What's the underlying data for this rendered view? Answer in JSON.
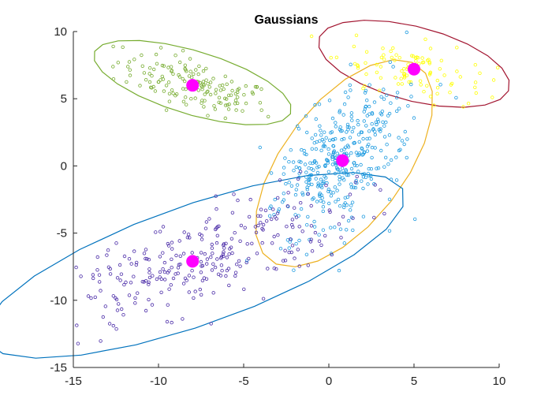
{
  "chart_data": {
    "type": "scatter",
    "title": "Gaussians",
    "xlabel": "",
    "ylabel": "",
    "xlim": [
      -15,
      10
    ],
    "ylim": [
      -15,
      10
    ],
    "xticks": [
      "-15",
      "-10",
      "-5",
      "0",
      "5",
      "10"
    ],
    "yticks": [
      "-15",
      "-10",
      "-5",
      "0",
      "5",
      "10"
    ],
    "grid": false,
    "legend": "none",
    "clusters": [
      {
        "id": "green",
        "color": "#77AC30",
        "mean": [
          -8,
          6
        ],
        "n": 150,
        "ellipse": {
          "center": [
            -8,
            6.2
          ],
          "semi_axes": [
            6.2,
            2.3
          ],
          "angle_deg": -22
        }
      },
      {
        "id": "yellow",
        "color": "#FFFF00",
        "ellipse_color": "#A2142F",
        "mean": [
          5,
          7.2
        ],
        "n": 100,
        "ellipse": {
          "center": [
            5,
            7.6
          ],
          "semi_axes": [
            5.9,
            2.7
          ],
          "angle_deg": -20
        }
      },
      {
        "id": "lightblue",
        "color": "#0072BD",
        "marker_color": "#1E9BE0",
        "ellipse_color": "#EDB120",
        "mean": [
          0.8,
          0.4
        ],
        "n": 400,
        "ellipse": {
          "center": [
            0.9,
            0.2
          ],
          "semi_axes": [
            8.5,
            3.8
          ],
          "angle_deg": 62
        }
      },
      {
        "id": "purple",
        "color": "#4B2CA8",
        "ellipse_color": "#0072BD",
        "mean": [
          -8,
          -7.1
        ],
        "n": 300,
        "ellipse": {
          "center": [
            -7.9,
            -7.4
          ],
          "semi_axes": [
            13.5,
            4.3
          ],
          "angle_deg": 25
        }
      }
    ],
    "centers_marker_color": "#FF00FF"
  }
}
